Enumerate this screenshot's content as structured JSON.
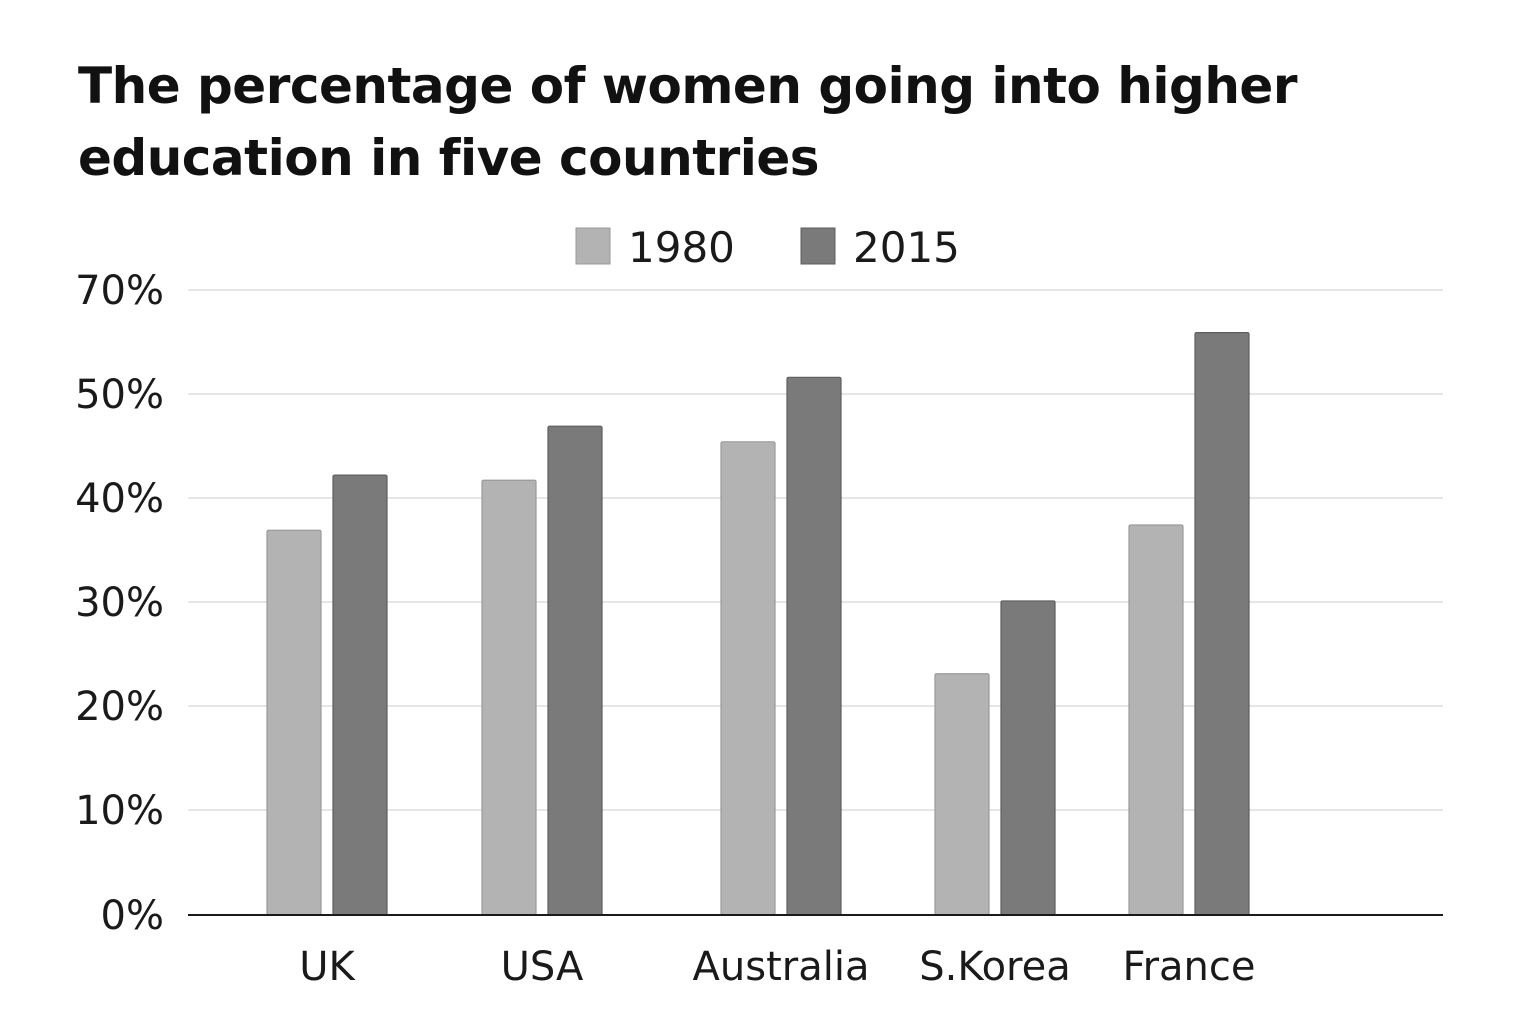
{
  "chart_data": {
    "type": "bar",
    "title": "The percentage of women going into higher education in five countries",
    "categories": [
      "UK",
      "USA",
      "Australia",
      "S.Korea",
      "France"
    ],
    "series": [
      {
        "name": "1980",
        "color": "#b3b3b3",
        "values": [
          37,
          41.8,
          45.5,
          23.2,
          37.5
        ]
      },
      {
        "name": "2015",
        "color": "#7a7a7a",
        "values": [
          42.3,
          47,
          51.7,
          30.2,
          56
        ]
      }
    ],
    "yticks": [
      "0%",
      "10%",
      "20%",
      "30%",
      "40%",
      "50%",
      "70%"
    ],
    "ylim": [
      0,
      60
    ],
    "grid": true,
    "legend_position": "top-center",
    "xlabel": "",
    "ylabel": ""
  }
}
